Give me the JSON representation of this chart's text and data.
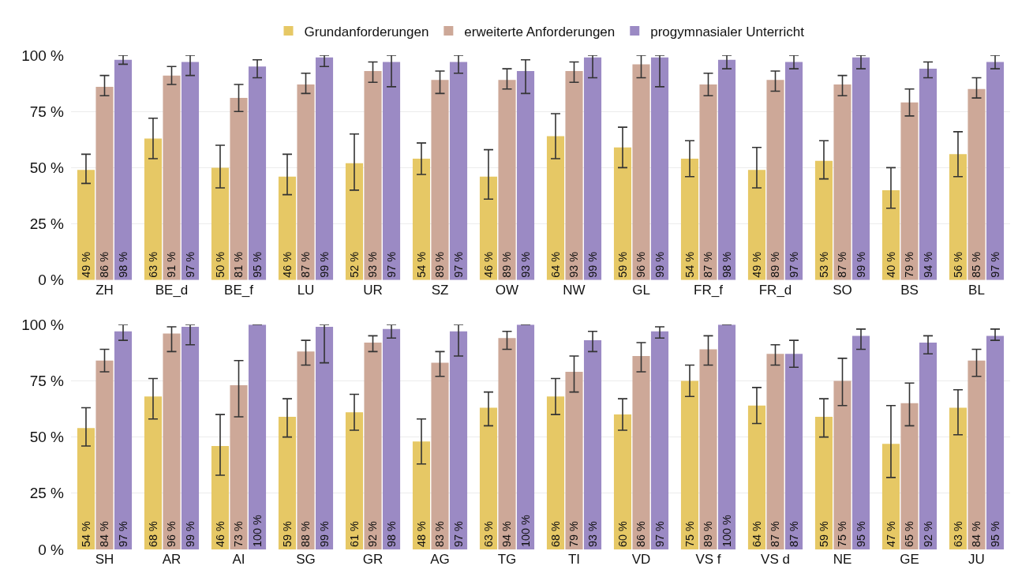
{
  "chart_data": [
    {
      "type": "bar",
      "legend": "top",
      "grid": "y",
      "ylim": [
        0,
        100
      ],
      "yticks": [
        {
          "value": 0,
          "label": "0 %"
        },
        {
          "value": 25,
          "label": "25 %"
        },
        {
          "value": 50,
          "label": "50 %"
        },
        {
          "value": 75,
          "label": "75 %"
        },
        {
          "value": 100,
          "label": "100 %"
        }
      ],
      "categories": [
        "ZH",
        "BE_d",
        "BE_f",
        "LU",
        "UR",
        "SZ",
        "OW",
        "NW",
        "GL",
        "FR_f",
        "FR_d",
        "SO",
        "BS",
        "BL"
      ],
      "series": [
        {
          "name": "Grundanforderungen",
          "color": "#e6c865",
          "values": [
            49,
            63,
            50,
            46,
            52,
            54,
            46,
            64,
            59,
            54,
            49,
            53,
            40,
            56
          ],
          "value_labels": [
            "49 %",
            "63 %",
            "50 %",
            "46 %",
            "52 %",
            "54 %",
            "46 %",
            "64 %",
            "59 %",
            "54 %",
            "49 %",
            "53 %",
            "40 %",
            "56 %"
          ],
          "errors": [
            [
              43,
              56
            ],
            [
              54,
              72
            ],
            [
              41,
              60
            ],
            [
              38,
              56
            ],
            [
              40,
              65
            ],
            [
              47,
              61
            ],
            [
              36,
              58
            ],
            [
              54,
              74
            ],
            [
              50,
              68
            ],
            [
              46,
              62
            ],
            [
              41,
              59
            ],
            [
              45,
              62
            ],
            [
              32,
              50
            ],
            [
              46,
              66
            ]
          ]
        },
        {
          "name": "erweiterte Anforderungen",
          "color": "#cda898",
          "values": [
            86,
            91,
            81,
            87,
            93,
            89,
            89,
            93,
            96,
            87,
            89,
            87,
            79,
            85
          ],
          "value_labels": [
            "86 %",
            "91 %",
            "81 %",
            "87 %",
            "93 %",
            "89 %",
            "89 %",
            "93 %",
            "96 %",
            "87 %",
            "89 %",
            "87 %",
            "79 %",
            "85 %"
          ],
          "errors": [
            [
              82,
              91
            ],
            [
              87,
              95
            ],
            [
              75,
              87
            ],
            [
              83,
              92
            ],
            [
              88,
              97
            ],
            [
              83,
              93
            ],
            [
              85,
              94
            ],
            [
              88,
              97
            ],
            [
              90,
              100
            ],
            [
              82,
              92
            ],
            [
              84,
              93
            ],
            [
              82,
              91
            ],
            [
              73,
              85
            ],
            [
              81,
              90
            ]
          ]
        },
        {
          "name": "progymnasialer Unterricht",
          "color": "#9b8ac4",
          "values": [
            98,
            97,
            95,
            99,
            97,
            97,
            93,
            99,
            99,
            98,
            97,
            99,
            94,
            97
          ],
          "value_labels": [
            "98 %",
            "97 %",
            "95 %",
            "99 %",
            "97 %",
            "97 %",
            "93 %",
            "99 %",
            "99 %",
            "98 %",
            "97 %",
            "99 %",
            "94 %",
            "97 %"
          ],
          "errors": [
            [
              96,
              100
            ],
            [
              91,
              100
            ],
            [
              90,
              98
            ],
            [
              95,
              100
            ],
            [
              86,
              100
            ],
            [
              92,
              100
            ],
            [
              83,
              98
            ],
            [
              90,
              100
            ],
            [
              86,
              100
            ],
            [
              94,
              100
            ],
            [
              94,
              100
            ],
            [
              94,
              100
            ],
            [
              90,
              97
            ],
            [
              94,
              100
            ]
          ]
        }
      ]
    },
    {
      "type": "bar",
      "grid": "y",
      "ylim": [
        0,
        100
      ],
      "yticks": [
        {
          "value": 0,
          "label": "0 %"
        },
        {
          "value": 25,
          "label": "25 %"
        },
        {
          "value": 50,
          "label": "50 %"
        },
        {
          "value": 75,
          "label": "75 %"
        },
        {
          "value": 100,
          "label": "100 %"
        }
      ],
      "categories": [
        "SH",
        "AR",
        "AI",
        "SG",
        "GR",
        "AG",
        "TG",
        "TI",
        "VD",
        "VS f",
        "VS d",
        "NE",
        "GE",
        "JU"
      ],
      "series": [
        {
          "color": "#e6c865",
          "values": [
            54,
            68,
            46,
            59,
            61,
            48,
            63,
            68,
            60,
            75,
            64,
            59,
            47,
            63
          ],
          "value_labels": [
            "54 %",
            "68 %",
            "46 %",
            "59 %",
            "61 %",
            "48 %",
            "63 %",
            "68 %",
            "60 %",
            "75 %",
            "64 %",
            "59 %",
            "47 %",
            "63 %"
          ],
          "errors": [
            [
              46,
              63
            ],
            [
              58,
              76
            ],
            [
              33,
              60
            ],
            [
              50,
              67
            ],
            [
              53,
              69
            ],
            [
              38,
              58
            ],
            [
              55,
              70
            ],
            [
              60,
              76
            ],
            [
              53,
              67
            ],
            [
              68,
              82
            ],
            [
              56,
              72
            ],
            [
              50,
              67
            ],
            [
              32,
              64
            ],
            [
              51,
              71
            ]
          ]
        },
        {
          "color": "#cda898",
          "values": [
            84,
            96,
            73,
            88,
            92,
            83,
            94,
            79,
            86,
            89,
            87,
            75,
            65,
            84
          ],
          "value_labels": [
            "84 %",
            "96 %",
            "73 %",
            "88 %",
            "92 %",
            "83 %",
            "94 %",
            "79 %",
            "86 %",
            "89 %",
            "87 %",
            "75 %",
            "65 %",
            "84 %"
          ],
          "errors": [
            [
              79,
              89
            ],
            [
              88,
              99
            ],
            [
              59,
              84
            ],
            [
              82,
              93
            ],
            [
              88,
              95
            ],
            [
              77,
              88
            ],
            [
              89,
              97
            ],
            [
              70,
              86
            ],
            [
              79,
              92
            ],
            [
              82,
              95
            ],
            [
              82,
              91
            ],
            [
              64,
              85
            ],
            [
              55,
              74
            ],
            [
              77,
              89
            ]
          ]
        },
        {
          "color": "#9b8ac4",
          "values": [
            97,
            99,
            100,
            99,
            98,
            97,
            100,
            93,
            97,
            100,
            87,
            95,
            92,
            95
          ],
          "value_labels": [
            "97 %",
            "99 %",
            "100 %",
            "99 %",
            "98 %",
            "97 %",
            "100 %",
            "93 %",
            "97 %",
            "100 %",
            "87 %",
            "95 %",
            "92 %",
            "95 %"
          ],
          "errors": [
            [
              93,
              100
            ],
            [
              91,
              100
            ],
            null,
            [
              83,
              100
            ],
            [
              94,
              100
            ],
            [
              86,
              100
            ],
            null,
            [
              88,
              97
            ],
            [
              94,
              99
            ],
            null,
            [
              81,
              93
            ],
            [
              89,
              98
            ],
            [
              87,
              95
            ],
            [
              93,
              98
            ]
          ]
        }
      ]
    }
  ]
}
